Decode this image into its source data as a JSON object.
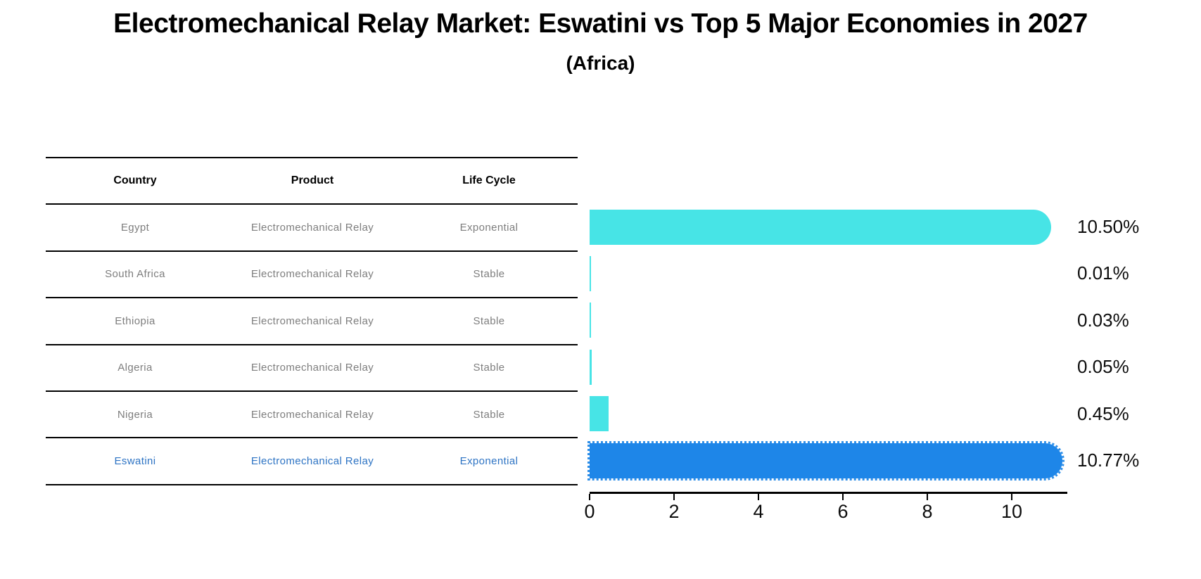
{
  "title": "Electromechanical Relay Market: Eswatini vs Top 5 Major Economies in 2027",
  "subtitle": "(Africa)",
  "table": {
    "headers": [
      "Country",
      "Product",
      "Life Cycle"
    ],
    "rows": [
      {
        "country": "Egypt",
        "product": "Electromechanical Relay",
        "life_cycle": "Exponential",
        "highlight": false
      },
      {
        "country": "South Africa",
        "product": "Electromechanical Relay",
        "life_cycle": "Stable",
        "highlight": false
      },
      {
        "country": "Ethiopia",
        "product": "Electromechanical Relay",
        "life_cycle": "Stable",
        "highlight": false
      },
      {
        "country": "Algeria",
        "product": "Electromechanical Relay",
        "life_cycle": "Stable",
        "highlight": false
      },
      {
        "country": "Nigeria",
        "product": "Electromechanical Relay",
        "life_cycle": "Stable",
        "highlight": false
      },
      {
        "country": "Eswatini",
        "product": "Electromechanical Relay",
        "life_cycle": "Exponential",
        "highlight": true
      }
    ]
  },
  "chart_data": {
    "type": "bar",
    "orientation": "horizontal",
    "categories": [
      "Egypt",
      "South Africa",
      "Ethiopia",
      "Algeria",
      "Nigeria",
      "Eswatini"
    ],
    "values": [
      10.5,
      0.01,
      0.03,
      0.05,
      0.45,
      10.77
    ],
    "labels": [
      "10.50%",
      "0.01%",
      "0.03%",
      "0.05%",
      "0.45%",
      "10.77%"
    ],
    "xticks": [
      0,
      2,
      4,
      6,
      8,
      10
    ],
    "xlim": [
      0,
      11.3
    ],
    "grid": false,
    "legend": null,
    "default_bar_color": "#47e4e6",
    "highlight_bar_color": "#1e86e8",
    "highlight_text_color": "#2e74c4",
    "table_text_color": "#7e7e7e",
    "axis_color": "#000000"
  }
}
